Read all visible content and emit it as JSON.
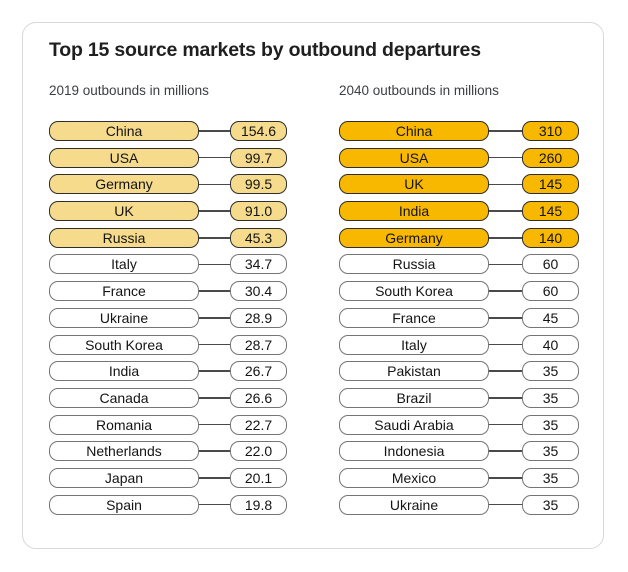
{
  "card": {
    "title": "Top 15 source markets by outbound departures"
  },
  "colors": {
    "highlight_2019": "#F5DB8B",
    "highlight_2040": "#F9B800",
    "pill_border_highlight": "#2E2E2E",
    "pill_border_default": "#757575",
    "connector": "#4A4A4A",
    "card_border": "#D8D8D8",
    "title_text": "#1F1F1F",
    "subhead_text": "#3C4043"
  },
  "chart_data": {
    "type": "table",
    "title": "Top 15 source markets by outbound departures",
    "legend_position": "none",
    "grid": false,
    "columns": [
      {
        "header": "2019 outbounds in millions",
        "unit": "millions",
        "highlight_top_n": 5,
        "rows": [
          {
            "country": "China",
            "value": "154.6"
          },
          {
            "country": "USA",
            "value": "99.7"
          },
          {
            "country": "Germany",
            "value": "99.5"
          },
          {
            "country": "UK",
            "value": "91.0"
          },
          {
            "country": "Russia",
            "value": "45.3"
          },
          {
            "country": "Italy",
            "value": "34.7"
          },
          {
            "country": "France",
            "value": "30.4"
          },
          {
            "country": "Ukraine",
            "value": "28.9"
          },
          {
            "country": "South Korea",
            "value": "28.7"
          },
          {
            "country": "India",
            "value": "26.7"
          },
          {
            "country": "Canada",
            "value": "26.6"
          },
          {
            "country": "Romania",
            "value": "22.7"
          },
          {
            "country": "Netherlands",
            "value": "22.0"
          },
          {
            "country": "Japan",
            "value": "20.1"
          },
          {
            "country": "Spain",
            "value": "19.8"
          }
        ]
      },
      {
        "header": "2040 outbounds in millions",
        "unit": "millions",
        "highlight_top_n": 5,
        "rows": [
          {
            "country": "China",
            "value": "310"
          },
          {
            "country": "USA",
            "value": "260"
          },
          {
            "country": "UK",
            "value": "145"
          },
          {
            "country": "India",
            "value": "145"
          },
          {
            "country": "Germany",
            "value": "140"
          },
          {
            "country": "Russia",
            "value": "60"
          },
          {
            "country": "South Korea",
            "value": "60"
          },
          {
            "country": "France",
            "value": "45"
          },
          {
            "country": "Italy",
            "value": "40"
          },
          {
            "country": "Pakistan",
            "value": "35"
          },
          {
            "country": "Brazil",
            "value": "35"
          },
          {
            "country": "Saudi Arabia",
            "value": "35"
          },
          {
            "country": "Indonesia",
            "value": "35"
          },
          {
            "country": "Mexico",
            "value": "35"
          },
          {
            "country": "Ukraine",
            "value": "35"
          }
        ]
      }
    ]
  }
}
